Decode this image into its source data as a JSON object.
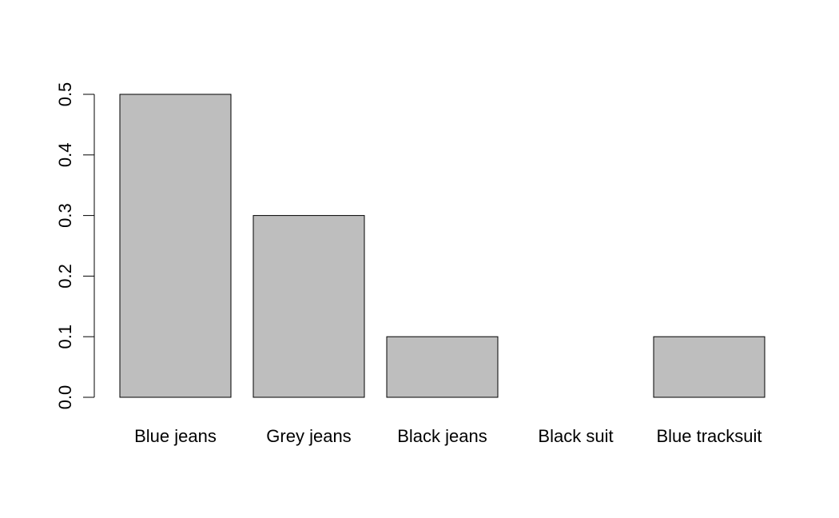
{
  "chart_data": {
    "type": "bar",
    "categories": [
      "Blue jeans",
      "Grey jeans",
      "Black jeans",
      "Black suit",
      "Blue tracksuit"
    ],
    "values": [
      0.5,
      0.3,
      0.1,
      0.0,
      0.1
    ],
    "title": "",
    "xlabel": "",
    "ylabel": "",
    "ylim": [
      0,
      0.5
    ],
    "yticks": [
      0.0,
      0.1,
      0.2,
      0.3,
      0.4,
      0.5
    ],
    "ytick_labels": [
      "0.0",
      "0.1",
      "0.2",
      "0.3",
      "0.4",
      "0.5"
    ],
    "grid": false,
    "legend": "none",
    "bar_fill": "#bebebe",
    "bar_stroke": "#000000"
  }
}
